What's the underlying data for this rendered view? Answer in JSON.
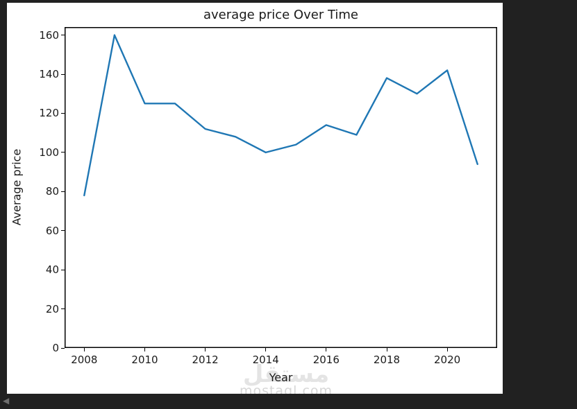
{
  "page": {
    "background_color": "#212121",
    "nav_arrow_glyph": "◀"
  },
  "figure": {
    "background_color": "#ffffff"
  },
  "chart_data": {
    "type": "line",
    "title": "average price Over Time",
    "xlabel": "Year",
    "ylabel": "Average price",
    "x": [
      2008,
      2009,
      2010,
      2011,
      2012,
      2013,
      2014,
      2015,
      2016,
      2017,
      2018,
      2019,
      2020,
      2021
    ],
    "values": [
      78,
      160,
      125,
      125,
      112,
      108,
      100,
      104,
      114,
      109,
      138,
      130,
      142,
      94
    ],
    "xticks": [
      2008,
      2010,
      2012,
      2014,
      2016,
      2018,
      2020
    ],
    "yticks": [
      0,
      20,
      40,
      60,
      80,
      100,
      120,
      140,
      160
    ],
    "xlim": [
      2007.35,
      2021.65
    ],
    "ylim": [
      0,
      164.1
    ],
    "grid": false,
    "legend": "none",
    "line_color": "#1f77b4",
    "axis_color": "#000000",
    "text_color": "#1a1a1a"
  },
  "watermark": {
    "logo_text": "مستقل",
    "site_text": "mostaql.com"
  }
}
